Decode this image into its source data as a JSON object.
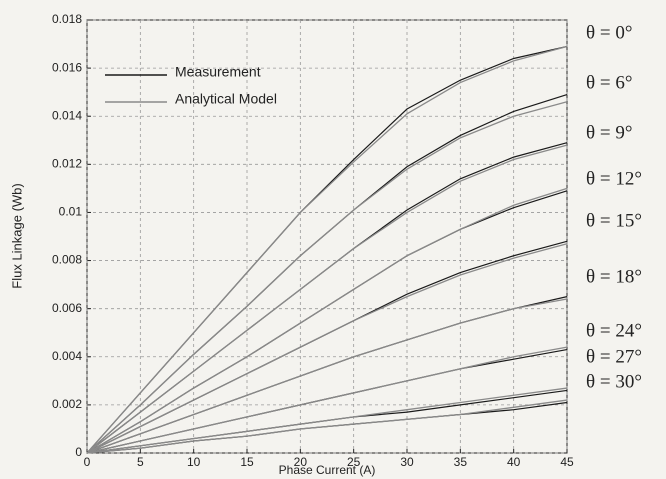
{
  "chart_data": {
    "type": "line",
    "x_label": "Phase Current (A)",
    "y_label": "Flux Linkage (Wb)",
    "x": [
      0,
      5,
      10,
      15,
      20,
      25,
      30,
      35,
      40,
      45
    ],
    "xlim": [
      0,
      45
    ],
    "xticks": [
      0,
      5,
      10,
      15,
      20,
      25,
      30,
      35,
      40,
      45
    ],
    "ylim": [
      0,
      0.018
    ],
    "yticks": [
      0,
      0.002,
      0.004,
      0.006,
      0.008,
      0.01,
      0.012,
      0.014,
      0.016,
      0.018
    ],
    "grid": true,
    "legend": "upper left",
    "series": [
      {
        "name": "Measurement",
        "color": "#1a1a1a",
        "curves": [
          [
            0,
            0.0025,
            0.005,
            0.0075,
            0.01,
            0.0122,
            0.0143,
            0.0155,
            0.0164,
            0.0169
          ],
          [
            0,
            0.002,
            0.0041,
            0.0061,
            0.0082,
            0.0101,
            0.0119,
            0.0132,
            0.0142,
            0.0149
          ],
          [
            0,
            0.0017,
            0.0034,
            0.0051,
            0.0068,
            0.0085,
            0.0101,
            0.0114,
            0.0123,
            0.0129
          ],
          [
            0,
            0.0013,
            0.0027,
            0.004,
            0.0054,
            0.0068,
            0.0082,
            0.0093,
            0.0102,
            0.0109
          ],
          [
            0,
            0.0011,
            0.0022,
            0.0033,
            0.0044,
            0.0055,
            0.0066,
            0.0075,
            0.0082,
            0.0088
          ],
          [
            0,
            0.0008,
            0.0016,
            0.0024,
            0.0032,
            0.004,
            0.0047,
            0.0054,
            0.006,
            0.0065
          ],
          [
            0,
            0.0005,
            0.001,
            0.0015,
            0.002,
            0.0025,
            0.003,
            0.0035,
            0.0039,
            0.0043
          ],
          [
            0,
            0.0003,
            0.0006,
            0.0009,
            0.0012,
            0.0015,
            0.0017,
            0.002,
            0.0023,
            0.0026
          ],
          [
            0,
            0.0002,
            0.0005,
            0.0007,
            0.001,
            0.0012,
            0.0014,
            0.0016,
            0.0018,
            0.0021
          ]
        ]
      },
      {
        "name": "Analytical Model",
        "color": "#8a8a8a",
        "curves": [
          [
            0,
            0.0025,
            0.005,
            0.0075,
            0.01,
            0.0121,
            0.0141,
            0.0154,
            0.0163,
            0.0169
          ],
          [
            0,
            0.002,
            0.0041,
            0.0061,
            0.0082,
            0.0101,
            0.0118,
            0.0131,
            0.014,
            0.0146
          ],
          [
            0,
            0.0017,
            0.0034,
            0.0051,
            0.0068,
            0.0085,
            0.01,
            0.0113,
            0.0122,
            0.0128
          ],
          [
            0,
            0.0013,
            0.0027,
            0.004,
            0.0054,
            0.0068,
            0.0082,
            0.0093,
            0.0103,
            0.011
          ],
          [
            0,
            0.0011,
            0.0022,
            0.0033,
            0.0044,
            0.0055,
            0.0065,
            0.0074,
            0.0081,
            0.0087
          ],
          [
            0,
            0.0008,
            0.0016,
            0.0024,
            0.0032,
            0.004,
            0.0047,
            0.0054,
            0.006,
            0.0064
          ],
          [
            0,
            0.0005,
            0.001,
            0.0015,
            0.002,
            0.0025,
            0.003,
            0.0035,
            0.004,
            0.0044
          ],
          [
            0,
            0.0003,
            0.0006,
            0.0009,
            0.0012,
            0.0015,
            0.0018,
            0.0021,
            0.0024,
            0.0027
          ],
          [
            0,
            0.0002,
            0.0005,
            0.0007,
            0.001,
            0.0012,
            0.0014,
            0.0016,
            0.0019,
            0.0022
          ]
        ]
      }
    ],
    "annotations": [
      "θ = 0°",
      "θ = 6°",
      "θ = 9°",
      "θ = 12°",
      "θ = 15°",
      "θ = 18°",
      "θ = 24°",
      "θ = 27°",
      "θ = 30°"
    ]
  }
}
